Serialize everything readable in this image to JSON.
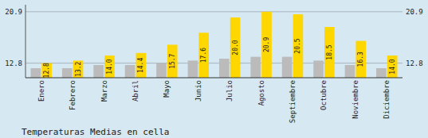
{
  "chart_data": {
    "type": "bar",
    "title": "Temperaturas Medias en cella",
    "categories": [
      "Enero",
      "Febrero",
      "Marzo",
      "Abril",
      "Mayo",
      "Junio",
      "Julio",
      "Agosto",
      "Septiembre",
      "Octubre",
      "Noviembre",
      "Diciembre"
    ],
    "series": [
      {
        "color": "#BBBBBB",
        "values": [
          12.0,
          12.0,
          12.5,
          12.5,
          12.8,
          13.2,
          13.5,
          13.8,
          13.8,
          13.2,
          12.5,
          12.0
        ]
      },
      {
        "color": "#FFD700",
        "data_labels": true,
        "values": [
          12.8,
          13.2,
          14.0,
          14.4,
          15.7,
          17.6,
          20.0,
          20.9,
          20.5,
          18.5,
          16.3,
          14.0
        ],
        "value_labels": [
          "12.8",
          "13.2",
          "14.0",
          "14.4",
          "15.7",
          "17.6",
          "20.0",
          "20.9",
          "20.5",
          "18.5",
          "16.3",
          "14.0"
        ]
      }
    ],
    "ylim": [
      10.5,
      22.0
    ],
    "yticks": [
      12.8,
      20.9
    ],
    "y2lim": [
      10.5,
      22.0
    ],
    "y2ticks": [
      12.8,
      20.9
    ],
    "grid": true
  }
}
